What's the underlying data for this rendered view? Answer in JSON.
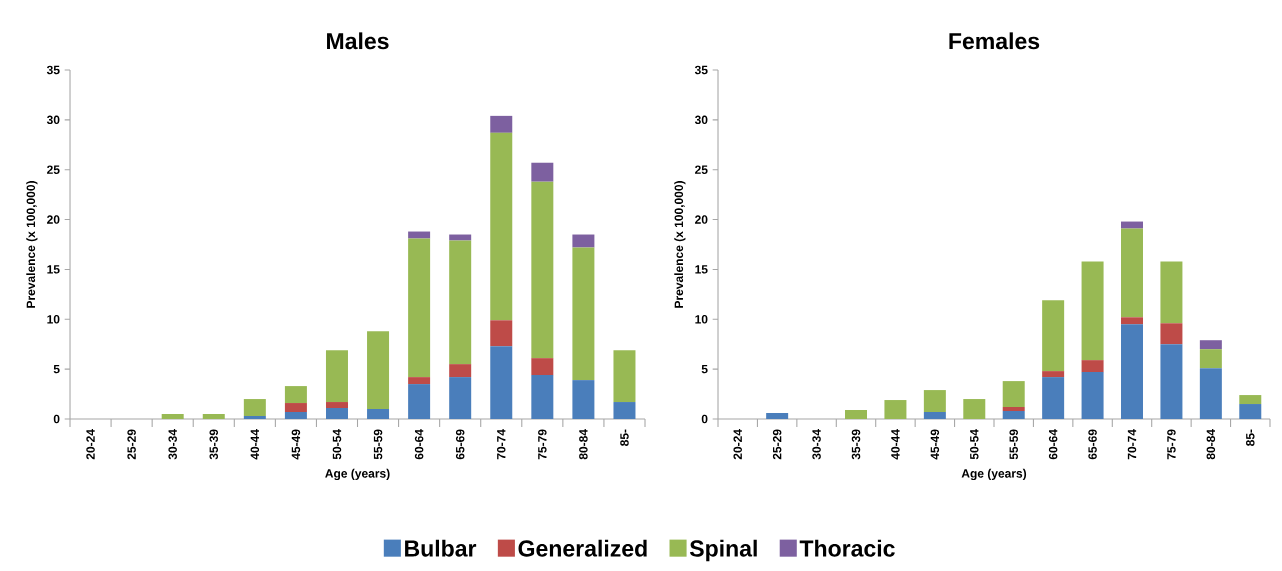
{
  "chart_data": [
    {
      "type": "bar",
      "stacked": true,
      "title": "Males",
      "xlabel": "Age (years)",
      "ylabel": "Prevalence (x 100,000)",
      "categories": [
        "20-24",
        "25-29",
        "30-34",
        "35-39",
        "40-44",
        "45-49",
        "50-54",
        "55-59",
        "60-64",
        "65-69",
        "70-74",
        "75-79",
        "80-84",
        "85-"
      ],
      "ylim": [
        0,
        35
      ],
      "yticks": [
        0,
        5,
        10,
        15,
        20,
        25,
        30,
        35
      ],
      "grid": false,
      "legend": "bottom",
      "series": [
        {
          "name": "Bulbar",
          "color": "#4a7ebb",
          "values": [
            0,
            0,
            0,
            0,
            0.3,
            0.7,
            1.1,
            1.0,
            3.5,
            4.2,
            7.3,
            4.4,
            3.9,
            1.7
          ]
        },
        {
          "name": "Generalized",
          "color": "#be4b48",
          "values": [
            0,
            0,
            0,
            0,
            0,
            0.9,
            0.6,
            0,
            0.7,
            1.3,
            2.6,
            1.7,
            0,
            0
          ]
        },
        {
          "name": "Spinal",
          "color": "#98b954",
          "values": [
            0,
            0,
            0.5,
            0.5,
            1.7,
            1.7,
            5.2,
            7.8,
            13.9,
            12.4,
            18.8,
            17.7,
            13.3,
            5.2
          ]
        },
        {
          "name": "Thoracic",
          "color": "#7d60a0",
          "values": [
            0,
            0,
            0,
            0,
            0,
            0,
            0,
            0,
            0.7,
            0.6,
            1.7,
            1.9,
            1.3,
            0
          ]
        }
      ]
    },
    {
      "type": "bar",
      "stacked": true,
      "title": "Females",
      "xlabel": "Age (years)",
      "ylabel": "Prevalence (x 100,000)",
      "categories": [
        "20-24",
        "25-29",
        "30-34",
        "35-39",
        "40-44",
        "45-49",
        "50-54",
        "55-59",
        "60-64",
        "65-69",
        "70-74",
        "75-79",
        "80-84",
        "85-"
      ],
      "ylim": [
        0,
        35
      ],
      "yticks": [
        0,
        5,
        10,
        15,
        20,
        25,
        30,
        35
      ],
      "grid": false,
      "legend": false,
      "series": [
        {
          "color": "#4a7ebb",
          "values": [
            0,
            0.6,
            0,
            0,
            0,
            0.7,
            0,
            0.8,
            4.2,
            4.7,
            9.5,
            7.5,
            5.1,
            1.5
          ]
        },
        {
          "color": "#be4b48",
          "values": [
            0,
            0,
            0,
            0,
            0,
            0,
            0,
            0.4,
            0.6,
            1.2,
            0.7,
            2.1,
            0,
            0
          ]
        },
        {
          "color": "#98b954",
          "values": [
            0,
            0,
            0,
            0.9,
            1.9,
            2.2,
            2.0,
            2.6,
            7.1,
            9.9,
            8.9,
            6.2,
            1.9,
            0.9
          ]
        },
        {
          "color": "#7d60a0",
          "values": [
            0,
            0,
            0,
            0,
            0,
            0,
            0,
            0,
            0,
            0,
            0.7,
            0,
            0.9,
            0
          ]
        }
      ]
    }
  ]
}
